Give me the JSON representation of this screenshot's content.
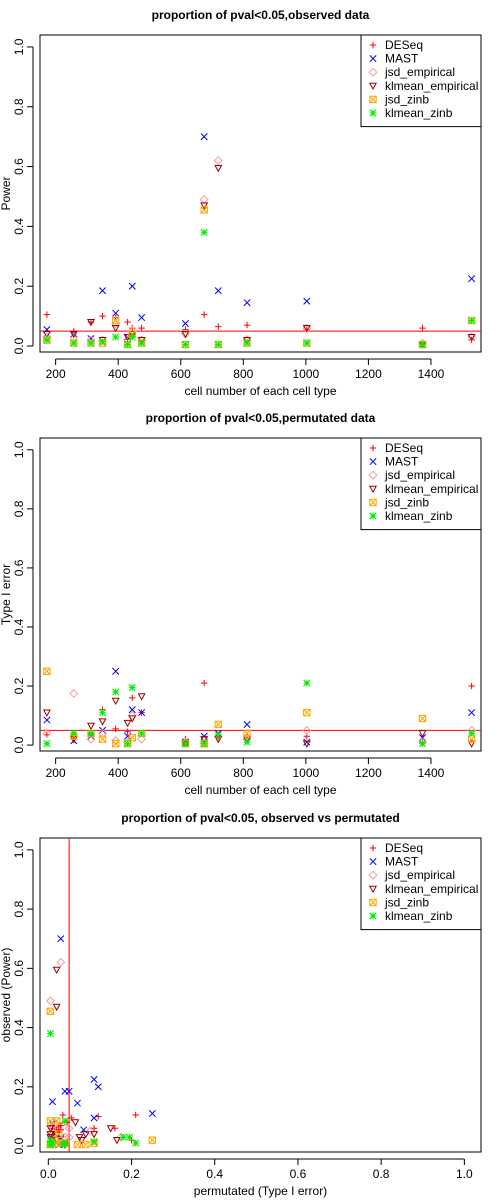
{
  "chart_data": [
    {
      "type": "scatter",
      "title": "proportion of pval<0.05,observed data",
      "xlabel": "cell number of each cell type",
      "ylabel": "Power",
      "xlim": [
        150,
        1560
      ],
      "ylim": [
        -0.02,
        1.04
      ],
      "xticks": [
        200,
        400,
        600,
        800,
        1000,
        1200,
        1400
      ],
      "yticks": [
        0.0,
        0.2,
        0.4,
        0.6,
        0.8,
        1.0
      ],
      "hline": 0.05,
      "vline": null,
      "legend_position": "top-right",
      "series": [
        {
          "name": "DESeq",
          "marker": "plus",
          "color": "#ff0000",
          "x": [
            172,
            258,
            313,
            350,
            392,
            430,
            445,
            475,
            615,
            675,
            720,
            812,
            1003,
            1373,
            1530
          ],
          "y": [
            0.105,
            0.05,
            0.08,
            0.1,
            0.095,
            0.08,
            0.06,
            0.06,
            0.055,
            0.105,
            0.065,
            0.07,
            0.055,
            0.06,
            0.02
          ]
        },
        {
          "name": "MAST",
          "marker": "x",
          "color": "#0000ff",
          "x": [
            172,
            258,
            313,
            350,
            392,
            430,
            445,
            475,
            615,
            675,
            720,
            812,
            1003,
            1373,
            1530
          ],
          "y": [
            0.055,
            0.04,
            0.025,
            0.185,
            0.11,
            0.03,
            0.2,
            0.095,
            0.075,
            0.7,
            0.185,
            0.145,
            0.15,
            0.005,
            0.225
          ]
        },
        {
          "name": "jsd_empirical",
          "marker": "diamond",
          "color": "#ff9999",
          "x": [
            172,
            258,
            313,
            350,
            392,
            430,
            445,
            475,
            615,
            675,
            720,
            812,
            1003,
            1373,
            1530
          ],
          "y": [
            0.03,
            0.03,
            0.02,
            0.02,
            0.075,
            0.02,
            0.05,
            0.02,
            0.04,
            0.49,
            0.62,
            0.02,
            0.06,
            0.01,
            0.03
          ]
        },
        {
          "name": "klmean_empirical",
          "marker": "tri-down",
          "color": "#990000",
          "x": [
            172,
            258,
            313,
            350,
            392,
            430,
            445,
            475,
            615,
            675,
            720,
            812,
            1003,
            1373,
            1530
          ],
          "y": [
            0.04,
            0.04,
            0.08,
            0.02,
            0.06,
            0.03,
            0.04,
            0.02,
            0.04,
            0.47,
            0.595,
            0.02,
            0.06,
            0.005,
            0.03
          ]
        },
        {
          "name": "jsd_zinb",
          "marker": "box-x",
          "color": "#ffa500",
          "x": [
            172,
            258,
            313,
            350,
            392,
            430,
            445,
            475,
            615,
            675,
            720,
            812,
            1003,
            1373,
            1530
          ],
          "y": [
            0.02,
            0.01,
            0.01,
            0.01,
            0.085,
            0.005,
            0.04,
            0.01,
            0.005,
            0.455,
            0.005,
            0.01,
            0.01,
            0.005,
            0.085
          ]
        },
        {
          "name": "klmean_zinb",
          "marker": "asterisk",
          "color": "#00ee00",
          "x": [
            172,
            258,
            313,
            350,
            392,
            430,
            445,
            475,
            615,
            675,
            720,
            812,
            1003,
            1373,
            1530
          ],
          "y": [
            0.02,
            0.01,
            0.01,
            0.015,
            0.03,
            0.005,
            0.03,
            0.01,
            0.005,
            0.38,
            0.005,
            0.01,
            0.01,
            0.005,
            0.085
          ]
        }
      ]
    },
    {
      "type": "scatter",
      "title": "proportion of pval<0.05,permutated data",
      "xlabel": "cell number of each cell type",
      "ylabel": "Type I error",
      "xlim": [
        150,
        1560
      ],
      "ylim": [
        -0.02,
        1.04
      ],
      "xticks": [
        200,
        400,
        600,
        800,
        1000,
        1200,
        1400
      ],
      "yticks": [
        0.0,
        0.2,
        0.4,
        0.6,
        0.8,
        1.0
      ],
      "hline": 0.05,
      "vline": null,
      "legend_position": "top-right",
      "series": [
        {
          "name": "DESeq",
          "marker": "plus",
          "color": "#ff0000",
          "x": [
            172,
            258,
            313,
            350,
            392,
            430,
            445,
            475,
            615,
            675,
            720,
            812,
            1003,
            1373,
            1530
          ],
          "y": [
            0.035,
            0.025,
            0.04,
            0.12,
            0.055,
            0.045,
            0.16,
            0.11,
            0.02,
            0.21,
            0.025,
            0.03,
            0.03,
            0.01,
            0.2
          ]
        },
        {
          "name": "MAST",
          "marker": "x",
          "color": "#0000ff",
          "x": [
            172,
            258,
            313,
            350,
            392,
            430,
            445,
            475,
            615,
            675,
            720,
            812,
            1003,
            1373,
            1530
          ],
          "y": [
            0.085,
            0.015,
            0.03,
            0.05,
            0.25,
            0.03,
            0.12,
            0.11,
            0.01,
            0.03,
            0.04,
            0.07,
            0.01,
            0.025,
            0.11
          ]
        },
        {
          "name": "jsd_empirical",
          "marker": "diamond",
          "color": "#ff9999",
          "x": [
            172,
            258,
            313,
            350,
            392,
            430,
            445,
            475,
            615,
            675,
            720,
            812,
            1003,
            1373,
            1530
          ],
          "y": [
            0.04,
            0.175,
            0.02,
            0.04,
            0.015,
            0.01,
            0.1,
            0.02,
            0.01,
            0.005,
            0.03,
            0.02,
            0.05,
            0.01,
            0.05
          ]
        },
        {
          "name": "klmean_empirical",
          "marker": "tri-down",
          "color": "#990000",
          "x": [
            172,
            258,
            313,
            350,
            392,
            430,
            445,
            475,
            615,
            675,
            720,
            812,
            1003,
            1373,
            1530
          ],
          "y": [
            0.11,
            0.02,
            0.065,
            0.08,
            0.15,
            0.075,
            0.09,
            0.165,
            0.005,
            0.02,
            0.02,
            0.02,
            0.005,
            0.04,
            0.005
          ]
        },
        {
          "name": "jsd_zinb",
          "marker": "box-x",
          "color": "#ffa500",
          "x": [
            172,
            258,
            313,
            350,
            392,
            430,
            445,
            475,
            615,
            675,
            720,
            812,
            1003,
            1373,
            1530
          ],
          "y": [
            0.25,
            0.03,
            0.04,
            0.02,
            0.005,
            0.005,
            0.025,
            0.04,
            0.005,
            0.005,
            0.07,
            0.04,
            0.11,
            0.09,
            0.02
          ]
        },
        {
          "name": "klmean_zinb",
          "marker": "asterisk",
          "color": "#00ee00",
          "x": [
            172,
            258,
            313,
            350,
            392,
            430,
            445,
            475,
            615,
            675,
            720,
            812,
            1003,
            1373,
            1530
          ],
          "y": [
            0.005,
            0.04,
            0.04,
            0.11,
            0.18,
            0.005,
            0.195,
            0.04,
            0.005,
            0.005,
            0.035,
            0.01,
            0.21,
            0.005,
            0.04
          ]
        }
      ]
    },
    {
      "type": "scatter",
      "title": "proportion of pval<0.05, observed vs permutated",
      "xlabel": "permutated (Type I error)",
      "ylabel": "observed (Power)",
      "xlim": [
        -0.02,
        1.04
      ],
      "ylim": [
        -0.02,
        1.04
      ],
      "xticks": [
        0.0,
        0.2,
        0.4,
        0.6,
        0.8,
        1.0
      ],
      "yticks": [
        0.0,
        0.2,
        0.4,
        0.6,
        0.8,
        1.0
      ],
      "hline": null,
      "vline": 0.05,
      "legend_position": "top-right",
      "series": [
        {
          "name": "DESeq",
          "marker": "plus",
          "color": "#ff0000",
          "x": [
            0.035,
            0.025,
            0.04,
            0.12,
            0.055,
            0.045,
            0.16,
            0.11,
            0.02,
            0.21,
            0.025,
            0.03,
            0.03,
            0.01,
            0.2
          ],
          "y": [
            0.105,
            0.05,
            0.08,
            0.1,
            0.095,
            0.08,
            0.06,
            0.06,
            0.055,
            0.105,
            0.065,
            0.07,
            0.055,
            0.06,
            0.02
          ]
        },
        {
          "name": "MAST",
          "marker": "x",
          "color": "#0000ff",
          "x": [
            0.085,
            0.015,
            0.03,
            0.05,
            0.25,
            0.03,
            0.12,
            0.11,
            0.01,
            0.03,
            0.04,
            0.07,
            0.01,
            0.025,
            0.11
          ],
          "y": [
            0.055,
            0.04,
            0.025,
            0.185,
            0.11,
            0.03,
            0.2,
            0.095,
            0.075,
            0.7,
            0.185,
            0.145,
            0.15,
            0.005,
            0.225
          ]
        },
        {
          "name": "jsd_empirical",
          "marker": "diamond",
          "color": "#ff9999",
          "x": [
            0.04,
            0.175,
            0.02,
            0.04,
            0.015,
            0.01,
            0.1,
            0.02,
            0.01,
            0.005,
            0.03,
            0.02,
            0.05,
            0.01,
            0.05
          ],
          "y": [
            0.03,
            0.03,
            0.02,
            0.02,
            0.075,
            0.02,
            0.05,
            0.02,
            0.04,
            0.49,
            0.62,
            0.02,
            0.06,
            0.01,
            0.03
          ]
        },
        {
          "name": "klmean_empirical",
          "marker": "tri-down",
          "color": "#990000",
          "x": [
            0.11,
            0.02,
            0.065,
            0.08,
            0.15,
            0.075,
            0.09,
            0.165,
            0.005,
            0.02,
            0.02,
            0.02,
            0.005,
            0.04,
            0.005
          ],
          "y": [
            0.04,
            0.04,
            0.08,
            0.02,
            0.06,
            0.03,
            0.04,
            0.02,
            0.04,
            0.47,
            0.595,
            0.02,
            0.06,
            0.005,
            0.03
          ]
        },
        {
          "name": "jsd_zinb",
          "marker": "box-x",
          "color": "#ffa500",
          "x": [
            0.25,
            0.03,
            0.04,
            0.02,
            0.005,
            0.005,
            0.025,
            0.04,
            0.005,
            0.005,
            0.07,
            0.04,
            0.11,
            0.09,
            0.02
          ],
          "y": [
            0.02,
            0.01,
            0.01,
            0.01,
            0.085,
            0.005,
            0.04,
            0.01,
            0.005,
            0.455,
            0.005,
            0.01,
            0.01,
            0.005,
            0.085
          ]
        },
        {
          "name": "klmean_zinb",
          "marker": "asterisk",
          "color": "#00ee00",
          "x": [
            0.005,
            0.04,
            0.04,
            0.11,
            0.18,
            0.005,
            0.195,
            0.04,
            0.005,
            0.005,
            0.035,
            0.01,
            0.21,
            0.005,
            0.04
          ],
          "y": [
            0.02,
            0.01,
            0.01,
            0.015,
            0.03,
            0.005,
            0.03,
            0.01,
            0.005,
            0.38,
            0.005,
            0.01,
            0.01,
            0.005,
            0.085
          ]
        }
      ]
    }
  ],
  "colors": {
    "reference_line": "#ff0000",
    "axis": "#000000"
  }
}
